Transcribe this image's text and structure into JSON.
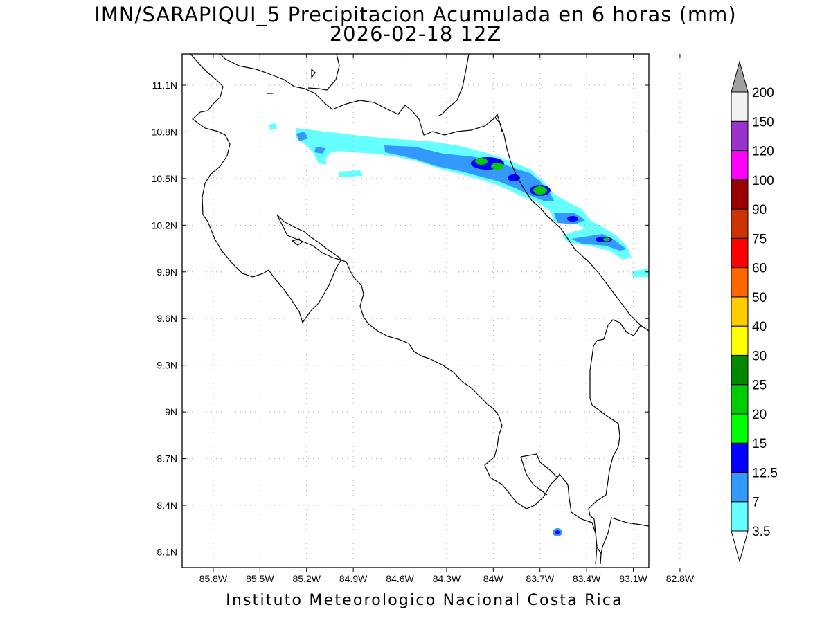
{
  "title": {
    "line1": "IMN/SARAPIQUI_5 Precipitacion Acumulada en 6 horas (mm)",
    "line2": "2026-02-18 12Z"
  },
  "footer": "Instituto Meteorologico Nacional Costa Rica",
  "map": {
    "lon_ticks": [
      "85.8W",
      "85.5W",
      "85.2W",
      "84.9W",
      "84.6W",
      "84.3W",
      "84W",
      "83.7W",
      "83.4W",
      "83.1W",
      "82.8W"
    ],
    "lat_ticks": [
      "11.1N",
      "10.8N",
      "10.5N",
      "10.2N",
      "9.9N",
      "9.6N",
      "9.3N",
      "9N",
      "8.7N",
      "8.4N",
      "8.1N"
    ],
    "lon_values": [
      -85.8,
      -85.5,
      -85.2,
      -84.9,
      -84.6,
      -84.3,
      -84.0,
      -83.7,
      -83.4,
      -83.1,
      -82.8
    ],
    "lat_values": [
      11.1,
      10.8,
      10.5,
      10.2,
      9.9,
      9.6,
      9.3,
      9.0,
      8.7,
      8.4,
      8.1
    ],
    "lon_range": [
      -86.0,
      -83.0
    ],
    "lat_range": [
      8.0,
      11.3
    ]
  },
  "colorbar": {
    "labels": [
      "3.5",
      "7",
      "12.5",
      "15",
      "20",
      "25",
      "30",
      "40",
      "50",
      "60",
      "75",
      "90",
      "100",
      "120",
      "150",
      "200"
    ],
    "colors": [
      "#66ffff",
      "#3399ff",
      "#0000ff",
      "#00ff00",
      "#00cc00",
      "#008800",
      "#ffff00",
      "#ffcc00",
      "#ff6600",
      "#ff0000",
      "#cc3300",
      "#990000",
      "#ff00ff",
      "#9933cc",
      "#f2f2f2"
    ],
    "top_arrow_color": "#a0a0a0",
    "bottom_arrow_color": "#ffffff"
  },
  "precip_legend_colors": {
    "light": "#66ffff",
    "moderate": "#3399ff",
    "heavy": "#0000ff",
    "very_heavy": "#00cc00"
  }
}
